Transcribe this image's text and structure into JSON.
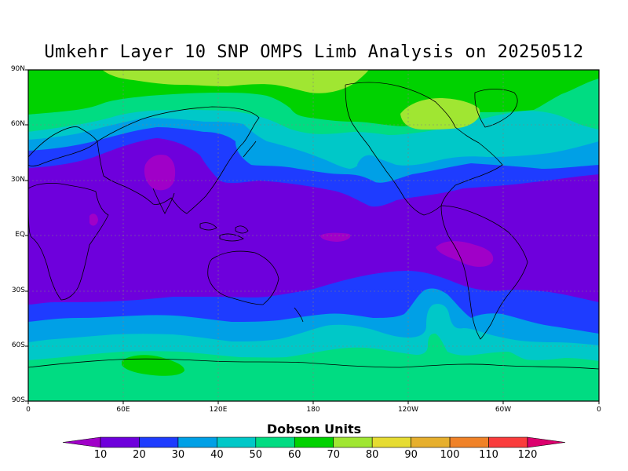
{
  "title": "Umkehr Layer 10 SNP OMPS Limb Analysis on 20250512",
  "lat_labels": [
    "90N",
    "60N",
    "30N",
    "EQ",
    "30S",
    "60S",
    "90S"
  ],
  "lon_labels": [
    "0",
    "60E",
    "120E",
    "180",
    "120W",
    "60W",
    "0"
  ],
  "colorbar": {
    "title": "Dobson Units",
    "ticks": [
      "10",
      "20",
      "30",
      "40",
      "50",
      "60",
      "70",
      "80",
      "90",
      "100",
      "110",
      "120"
    ],
    "colors": [
      "#a000c8",
      "#6e00dc",
      "#1e3cff",
      "#00a0e6",
      "#00c8c8",
      "#00dc82",
      "#00d200",
      "#a0e632",
      "#e6dc32",
      "#e6af2d",
      "#f08228",
      "#fa3c3c",
      "#dc006e"
    ]
  },
  "map_colors": {
    "frame": "#000000",
    "coast": "#000000",
    "grid": "#808080"
  }
}
